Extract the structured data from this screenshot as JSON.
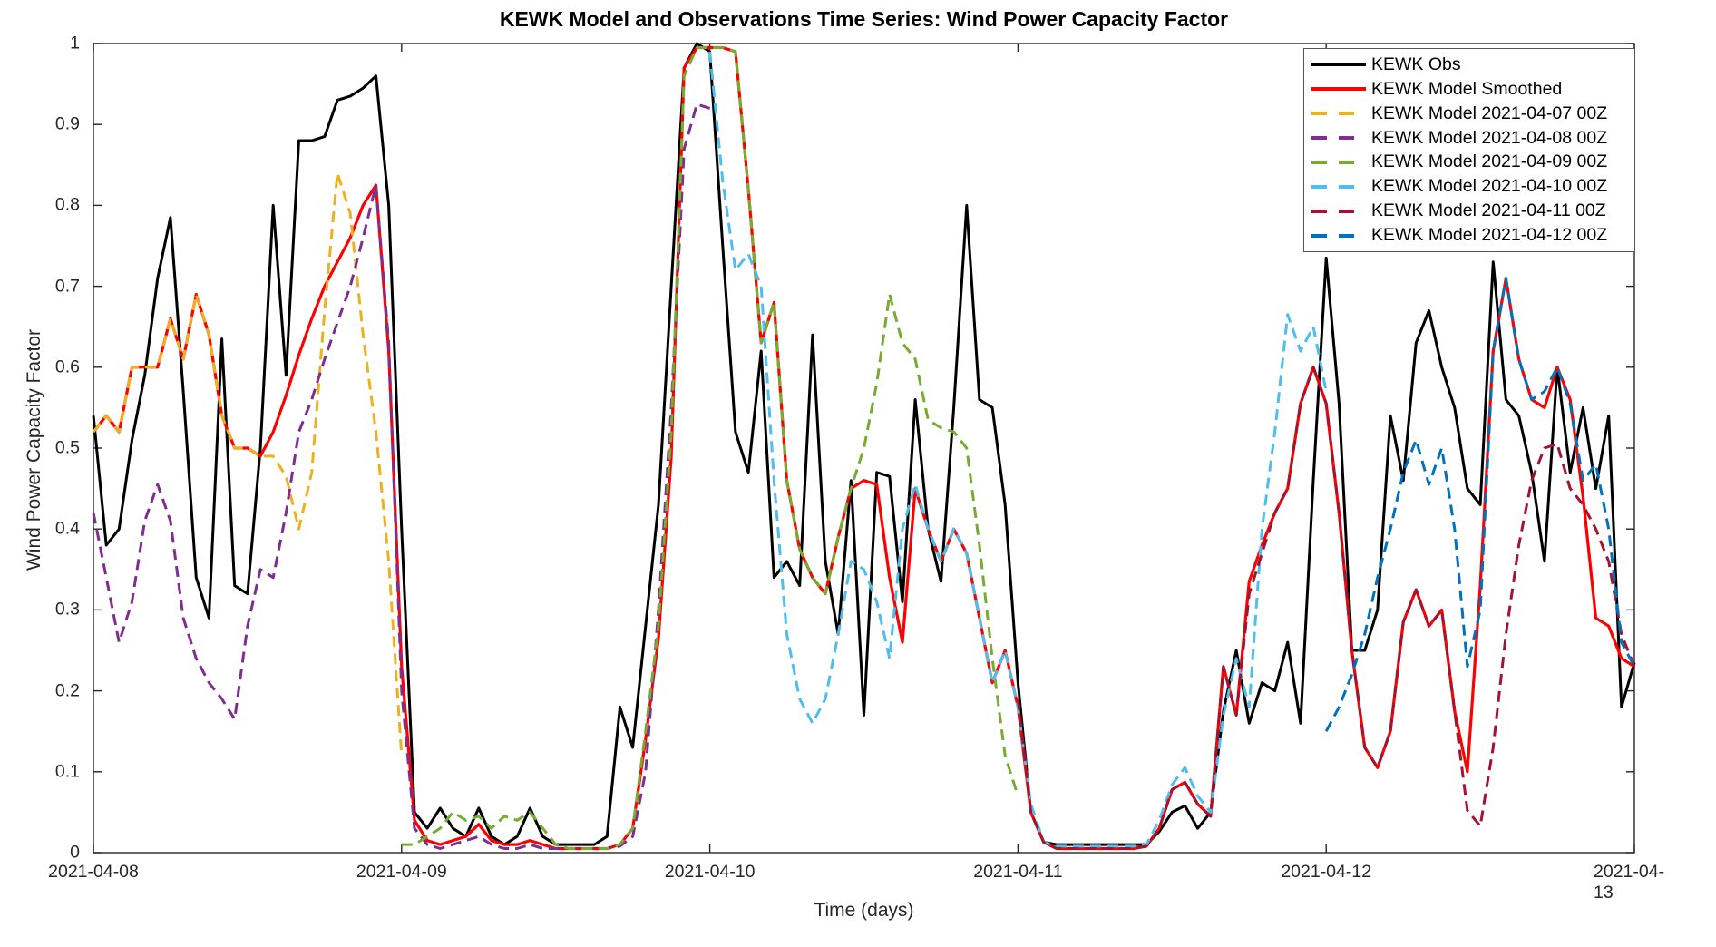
{
  "chart_data": {
    "type": "line",
    "title": "KEWK Model and Observations Time Series: Wind Power Capacity Factor",
    "xlabel": "Time (days)",
    "ylabel": "Wind Power Capacity Factor",
    "grid": false,
    "legend_position": "top-right-inside",
    "x_unit": "hours since 2021-04-08 00Z",
    "x_range_hours": [
      0,
      120
    ],
    "ylim": [
      0,
      1
    ],
    "x_ticks": [
      {
        "hour": 0,
        "label": "2021-04-08"
      },
      {
        "hour": 24,
        "label": "2021-04-09"
      },
      {
        "hour": 48,
        "label": "2021-04-10"
      },
      {
        "hour": 72,
        "label": "2021-04-11"
      },
      {
        "hour": 96,
        "label": "2021-04-12"
      },
      {
        "hour": 120,
        "label": "2021-04-13"
      }
    ],
    "y_ticks": [
      {
        "value": 0,
        "label": "0"
      },
      {
        "value": 0.1,
        "label": "0.1"
      },
      {
        "value": 0.2,
        "label": "0.2"
      },
      {
        "value": 0.3,
        "label": "0.3"
      },
      {
        "value": 0.4,
        "label": "0.4"
      },
      {
        "value": 0.5,
        "label": "0.5"
      },
      {
        "value": 0.6,
        "label": "0.6"
      },
      {
        "value": 0.7,
        "label": "0.7"
      },
      {
        "value": 0.8,
        "label": "0.8"
      },
      {
        "value": 0.9,
        "label": "0.9"
      },
      {
        "value": 1,
        "label": "1"
      }
    ],
    "series": [
      {
        "name": "KEWK Obs",
        "color": "#000000",
        "style": "solid",
        "width": 3,
        "start_hour": 0,
        "values": [
          0.54,
          0.38,
          0.4,
          0.51,
          0.59,
          0.71,
          0.785,
          0.57,
          0.34,
          0.29,
          0.635,
          0.33,
          0.32,
          0.5,
          0.8,
          0.59,
          0.88,
          0.88,
          0.885,
          0.93,
          0.935,
          0.945,
          0.96,
          0.8,
          0.4,
          0.05,
          0.03,
          0.055,
          0.03,
          0.02,
          0.055,
          0.02,
          0.01,
          0.02,
          0.055,
          0.02,
          0.01,
          0.01,
          0.01,
          0.01,
          0.02,
          0.18,
          0.13,
          0.28,
          0.43,
          0.7,
          0.97,
          1.0,
          0.99,
          0.75,
          0.52,
          0.47,
          0.62,
          0.34,
          0.36,
          0.33,
          0.64,
          0.36,
          0.27,
          0.46,
          0.17,
          0.47,
          0.465,
          0.31,
          0.56,
          0.4,
          0.335,
          0.55,
          0.8,
          0.56,
          0.55,
          0.43,
          0.21,
          0.05,
          0.013,
          0.01,
          0.01,
          0.01,
          0.01,
          0.01,
          0.01,
          0.01,
          0.01,
          0.026,
          0.05,
          0.058,
          0.03,
          0.05,
          0.175,
          0.25,
          0.16,
          0.21,
          0.2,
          0.26,
          0.16,
          0.46,
          0.735,
          0.555,
          0.25,
          0.25,
          0.3,
          0.54,
          0.46,
          0.63,
          0.67,
          0.6,
          0.55,
          0.45,
          0.43,
          0.73,
          0.56,
          0.54,
          0.47,
          0.36,
          0.6,
          0.47,
          0.55,
          0.45,
          0.54,
          0.18,
          0.235
        ]
      },
      {
        "name": "KEWK Model Smoothed",
        "color": "#FF0000",
        "style": "solid",
        "width": 3.2,
        "start_hour": 0,
        "values": [
          0.52,
          0.54,
          0.52,
          0.6,
          0.6,
          0.6,
          0.66,
          0.61,
          0.69,
          0.64,
          0.54,
          0.5,
          0.5,
          0.49,
          0.52,
          0.565,
          0.615,
          0.66,
          0.7,
          0.73,
          0.76,
          0.8,
          0.825,
          0.62,
          0.23,
          0.04,
          0.015,
          0.01,
          0.015,
          0.02,
          0.035,
          0.015,
          0.01,
          0.01,
          0.015,
          0.01,
          0.005,
          0.005,
          0.005,
          0.005,
          0.005,
          0.01,
          0.03,
          0.14,
          0.265,
          0.49,
          0.97,
          0.995,
          0.995,
          0.995,
          0.99,
          0.82,
          0.63,
          0.68,
          0.46,
          0.375,
          0.34,
          0.32,
          0.39,
          0.45,
          0.46,
          0.455,
          0.34,
          0.26,
          0.45,
          0.4,
          0.36,
          0.4,
          0.37,
          0.29,
          0.21,
          0.25,
          0.18,
          0.05,
          0.013,
          0.005,
          0.005,
          0.005,
          0.005,
          0.005,
          0.005,
          0.005,
          0.008,
          0.03,
          0.078,
          0.087,
          0.06,
          0.045,
          0.23,
          0.17,
          0.335,
          0.38,
          0.42,
          0.45,
          0.555,
          0.6,
          0.555,
          0.42,
          0.25,
          0.13,
          0.105,
          0.15,
          0.285,
          0.325,
          0.28,
          0.3,
          0.175,
          0.1,
          0.33,
          0.62,
          0.71,
          0.61,
          0.56,
          0.55,
          0.6,
          0.56,
          0.44,
          0.29,
          0.28,
          0.24,
          0.23
        ]
      },
      {
        "name": "KEWK Model 2021-04-07 00Z",
        "color": "#EDB120",
        "style": "dashed",
        "width": 3,
        "start_hour": 0,
        "values": [
          0.52,
          0.54,
          0.52,
          0.6,
          0.6,
          0.6,
          0.66,
          0.61,
          0.69,
          0.64,
          0.54,
          0.5,
          0.5,
          0.49,
          0.49,
          0.465,
          0.4,
          0.47,
          0.67,
          0.84,
          0.79,
          0.64,
          0.52,
          0.36,
          0.12
        ]
      },
      {
        "name": "KEWK Model 2021-04-08 00Z",
        "color": "#7E2F8E",
        "style": "dashed",
        "width": 3,
        "start_hour": 0,
        "values": [
          0.42,
          0.34,
          0.26,
          0.31,
          0.41,
          0.455,
          0.41,
          0.29,
          0.24,
          0.21,
          0.19,
          0.165,
          0.28,
          0.35,
          0.34,
          0.42,
          0.52,
          0.56,
          0.61,
          0.655,
          0.7,
          0.76,
          0.825,
          0.63,
          0.2,
          0.03,
          0.01,
          0.005,
          0.01,
          0.015,
          0.02,
          0.01,
          0.005,
          0.005,
          0.01,
          0.005,
          0.005,
          0.005,
          0.005,
          0.005,
          0.005,
          0.008,
          0.02,
          0.1,
          0.3,
          0.55,
          0.87,
          0.925,
          0.92
        ]
      },
      {
        "name": "KEWK Model 2021-04-09 00Z",
        "color": "#77AC30",
        "style": "dashed",
        "width": 3,
        "start_hour": 24,
        "values": [
          0.01,
          0.01,
          0.02,
          0.03,
          0.05,
          0.04,
          0.045,
          0.03,
          0.045,
          0.04,
          0.05,
          0.03,
          0.01,
          0.005,
          0.005,
          0.005,
          0.005,
          0.01,
          0.03,
          0.15,
          0.28,
          0.52,
          0.96,
          0.995,
          0.995,
          0.995,
          0.99,
          0.82,
          0.63,
          0.68,
          0.46,
          0.375,
          0.34,
          0.32,
          0.39,
          0.45,
          0.5,
          0.58,
          0.69,
          0.63,
          0.61,
          0.535,
          0.525,
          0.52,
          0.5,
          0.38,
          0.24,
          0.12,
          0.07
        ]
      },
      {
        "name": "KEWK Model 2021-04-10 00Z",
        "color": "#4DBEEE",
        "style": "dashed",
        "width": 3,
        "start_hour": 48,
        "values": [
          0.99,
          0.83,
          0.72,
          0.74,
          0.7,
          0.46,
          0.27,
          0.19,
          0.16,
          0.19,
          0.27,
          0.36,
          0.35,
          0.31,
          0.24,
          0.4,
          0.455,
          0.4,
          0.36,
          0.4,
          0.37,
          0.29,
          0.21,
          0.25,
          0.18,
          0.06,
          0.013,
          0.008,
          0.008,
          0.008,
          0.008,
          0.008,
          0.008,
          0.008,
          0.01,
          0.04,
          0.084,
          0.105,
          0.07,
          0.05,
          0.17,
          0.24,
          0.18,
          0.4,
          0.52,
          0.665,
          0.62,
          0.65,
          0.57
        ]
      },
      {
        "name": "KEWK Model 2021-04-11 00Z",
        "color": "#A2142F",
        "style": "dashed",
        "width": 3,
        "start_hour": 72,
        "values": [
          0.19,
          0.05,
          0.013,
          0.005,
          0.005,
          0.005,
          0.005,
          0.005,
          0.005,
          0.005,
          0.008,
          0.03,
          0.078,
          0.087,
          0.06,
          0.045,
          0.23,
          0.17,
          0.32,
          0.37,
          0.42,
          0.45,
          0.555,
          0.6,
          0.555,
          0.42,
          0.25,
          0.13,
          0.105,
          0.15,
          0.285,
          0.325,
          0.28,
          0.3,
          0.175,
          0.052,
          0.033,
          0.13,
          0.27,
          0.38,
          0.46,
          0.5,
          0.505,
          0.45,
          0.43,
          0.4,
          0.36,
          0.27,
          0.23
        ]
      },
      {
        "name": "KEWK Model 2021-04-12 00Z",
        "color": "#0072BD",
        "style": "dashed",
        "width": 3,
        "start_hour": 96,
        "values": [
          0.15,
          0.18,
          0.22,
          0.27,
          0.34,
          0.4,
          0.47,
          0.51,
          0.455,
          0.5,
          0.4,
          0.23,
          0.3,
          0.62,
          0.71,
          0.61,
          0.56,
          0.57,
          0.6,
          0.555,
          0.46,
          0.48,
          0.4,
          0.26,
          0.23
        ]
      }
    ]
  }
}
